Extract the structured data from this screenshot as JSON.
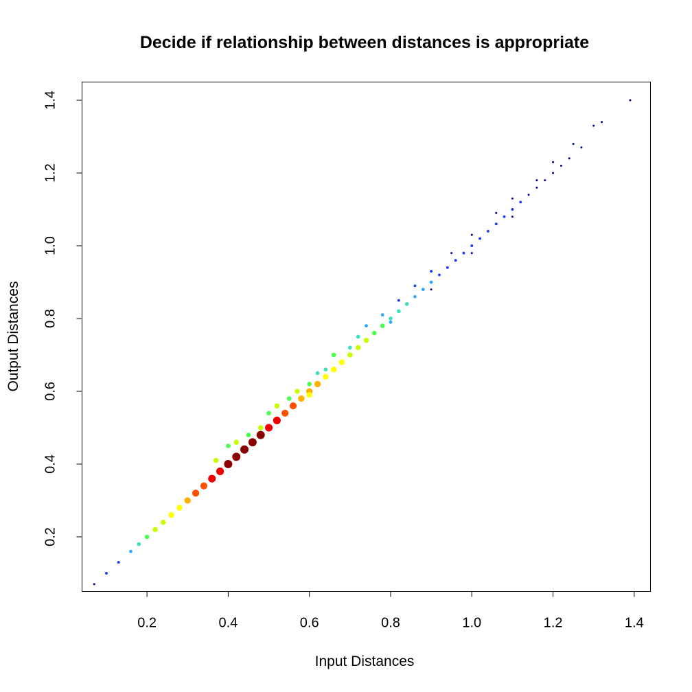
{
  "chart_data": {
    "type": "scatter",
    "title": "Decide if relationship between distances is appropriate",
    "xlabel": "Input Distances",
    "ylabel": "Output Distances",
    "xlim": [
      0.04,
      1.44
    ],
    "ylim": [
      0.05,
      1.45
    ],
    "xticks": [
      "0.2",
      "0.4",
      "0.6",
      "0.8",
      "1.0",
      "1.2",
      "1.4"
    ],
    "yticks": [
      "0.2",
      "0.4",
      "0.6",
      "0.8",
      "1.0",
      "1.2",
      "1.4"
    ],
    "xtick_values": [
      0.2,
      0.4,
      0.6,
      0.8,
      1.0,
      1.2,
      1.4
    ],
    "ytick_values": [
      0.2,
      0.4,
      0.6,
      0.8,
      1.0,
      1.2,
      1.4
    ],
    "grid": false,
    "legend": "none",
    "color_by": "point density",
    "density_colors": [
      "#00008b",
      "#1f3fff",
      "#2fa6ff",
      "#3fe0c0",
      "#4cff4c",
      "#c8ff00",
      "#ffff00",
      "#ffb000",
      "#ff5000",
      "#ee0000",
      "#8b0000"
    ],
    "points": [
      [
        0.07,
        0.07,
        0
      ],
      [
        0.1,
        0.1,
        1
      ],
      [
        0.13,
        0.13,
        1
      ],
      [
        0.16,
        0.16,
        2
      ],
      [
        0.18,
        0.18,
        3
      ],
      [
        0.2,
        0.2,
        4
      ],
      [
        0.22,
        0.22,
        5
      ],
      [
        0.24,
        0.24,
        5
      ],
      [
        0.26,
        0.26,
        6
      ],
      [
        0.28,
        0.28,
        6
      ],
      [
        0.3,
        0.3,
        7
      ],
      [
        0.32,
        0.32,
        8
      ],
      [
        0.34,
        0.34,
        8
      ],
      [
        0.36,
        0.36,
        9
      ],
      [
        0.38,
        0.38,
        9
      ],
      [
        0.4,
        0.4,
        10
      ],
      [
        0.42,
        0.42,
        10
      ],
      [
        0.44,
        0.44,
        10
      ],
      [
        0.46,
        0.46,
        10
      ],
      [
        0.48,
        0.48,
        10
      ],
      [
        0.5,
        0.5,
        9
      ],
      [
        0.52,
        0.52,
        9
      ],
      [
        0.54,
        0.54,
        8
      ],
      [
        0.56,
        0.56,
        8
      ],
      [
        0.58,
        0.58,
        7
      ],
      [
        0.6,
        0.6,
        7
      ],
      [
        0.62,
        0.62,
        7
      ],
      [
        0.64,
        0.64,
        6
      ],
      [
        0.66,
        0.66,
        6
      ],
      [
        0.68,
        0.68,
        6
      ],
      [
        0.7,
        0.7,
        5
      ],
      [
        0.72,
        0.72,
        5
      ],
      [
        0.74,
        0.74,
        5
      ],
      [
        0.76,
        0.76,
        4
      ],
      [
        0.78,
        0.78,
        4
      ],
      [
        0.8,
        0.8,
        3
      ],
      [
        0.82,
        0.82,
        3
      ],
      [
        0.84,
        0.84,
        3
      ],
      [
        0.86,
        0.86,
        2
      ],
      [
        0.88,
        0.88,
        2
      ],
      [
        0.9,
        0.9,
        2
      ],
      [
        0.92,
        0.92,
        1
      ],
      [
        0.94,
        0.94,
        1
      ],
      [
        0.96,
        0.96,
        1
      ],
      [
        0.98,
        0.98,
        1
      ],
      [
        1.0,
        1.0,
        1
      ],
      [
        1.02,
        1.02,
        1
      ],
      [
        1.04,
        1.04,
        1
      ],
      [
        1.06,
        1.06,
        1
      ],
      [
        1.08,
        1.08,
        1
      ],
      [
        1.1,
        1.1,
        1
      ],
      [
        1.12,
        1.12,
        1
      ],
      [
        1.14,
        1.14,
        0
      ],
      [
        1.16,
        1.16,
        0
      ],
      [
        1.18,
        1.18,
        0
      ],
      [
        1.2,
        1.2,
        0
      ],
      [
        1.22,
        1.22,
        0
      ],
      [
        1.24,
        1.24,
        0
      ],
      [
        1.27,
        1.27,
        0
      ],
      [
        1.32,
        1.34,
        0
      ],
      [
        1.39,
        1.4,
        0
      ],
      [
        0.37,
        0.41,
        5
      ],
      [
        0.4,
        0.45,
        4
      ],
      [
        0.42,
        0.46,
        5
      ],
      [
        0.45,
        0.48,
        4
      ],
      [
        0.48,
        0.5,
        5
      ],
      [
        0.5,
        0.54,
        4
      ],
      [
        0.52,
        0.56,
        5
      ],
      [
        0.55,
        0.58,
        4
      ],
      [
        0.57,
        0.6,
        5
      ],
      [
        0.6,
        0.62,
        4
      ],
      [
        0.62,
        0.65,
        3
      ],
      [
        0.64,
        0.66,
        3
      ],
      [
        0.66,
        0.7,
        4
      ],
      [
        0.7,
        0.72,
        3
      ],
      [
        0.72,
        0.75,
        3
      ],
      [
        0.74,
        0.78,
        2
      ],
      [
        0.78,
        0.81,
        2
      ],
      [
        0.82,
        0.85,
        1
      ],
      [
        0.86,
        0.89,
        1
      ],
      [
        0.9,
        0.93,
        1
      ],
      [
        0.95,
        0.98,
        0
      ],
      [
        1.0,
        1.03,
        0
      ],
      [
        1.06,
        1.09,
        0
      ],
      [
        1.1,
        1.13,
        0
      ],
      [
        1.16,
        1.18,
        0
      ],
      [
        1.2,
        1.23,
        0
      ],
      [
        1.25,
        1.28,
        0
      ],
      [
        1.3,
        1.33,
        0
      ],
      [
        0.9,
        0.88,
        0
      ],
      [
        1.0,
        0.98,
        0
      ],
      [
        1.1,
        1.08,
        0
      ],
      [
        0.6,
        0.59,
        6
      ],
      [
        0.8,
        0.79,
        2
      ]
    ]
  }
}
